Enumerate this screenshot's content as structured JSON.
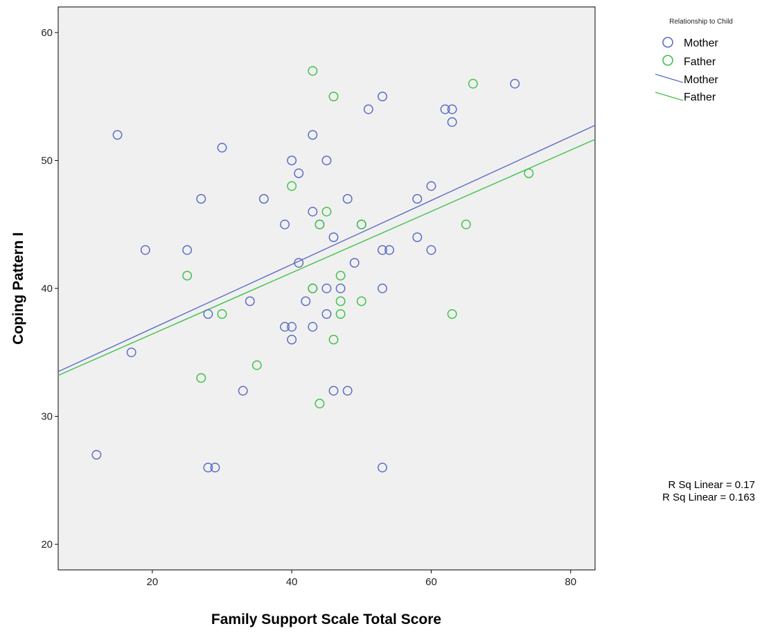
{
  "chart_data": {
    "type": "scatter",
    "xlabel": "Family Support Scale Total Score",
    "ylabel": "Coping Pattern I",
    "xlim": [
      6.5,
      83.5
    ],
    "ylim": [
      18,
      62
    ],
    "x_ticks": [
      20,
      40,
      60,
      80
    ],
    "y_ticks": [
      20,
      30,
      40,
      50,
      60
    ],
    "x_tick_labels": [
      "20",
      "40",
      "60",
      "80"
    ],
    "y_tick_labels": [
      "20",
      "30",
      "40",
      "50",
      "60"
    ],
    "grid": false,
    "legend_position": "top-right outside",
    "legend_title": "Relationship to Child",
    "series": [
      {
        "name": "Mother",
        "color": "#5b6cc4",
        "marker": "open-circle",
        "points": [
          [
            12,
            27
          ],
          [
            15,
            52
          ],
          [
            17,
            35
          ],
          [
            19,
            43
          ],
          [
            25,
            43
          ],
          [
            27,
            47
          ],
          [
            28,
            38
          ],
          [
            28,
            26
          ],
          [
            29,
            26
          ],
          [
            30,
            51
          ],
          [
            33,
            32
          ],
          [
            34,
            39
          ],
          [
            36,
            47
          ],
          [
            39,
            45
          ],
          [
            39,
            37
          ],
          [
            40,
            50
          ],
          [
            40,
            37
          ],
          [
            40,
            36
          ],
          [
            41,
            49
          ],
          [
            41,
            42
          ],
          [
            42,
            39
          ],
          [
            43,
            52
          ],
          [
            43,
            46
          ],
          [
            43,
            40
          ],
          [
            43,
            37
          ],
          [
            44,
            45
          ],
          [
            45,
            50
          ],
          [
            45,
            40
          ],
          [
            45,
            38
          ],
          [
            46,
            44
          ],
          [
            46,
            32
          ],
          [
            47,
            40
          ],
          [
            48,
            47
          ],
          [
            48,
            32
          ],
          [
            49,
            42
          ],
          [
            50,
            45
          ],
          [
            51,
            54
          ],
          [
            53,
            55
          ],
          [
            53,
            43
          ],
          [
            53,
            40
          ],
          [
            53,
            26
          ],
          [
            54,
            43
          ],
          [
            58,
            47
          ],
          [
            58,
            44
          ],
          [
            60,
            48
          ],
          [
            60,
            43
          ],
          [
            62,
            54
          ],
          [
            63,
            54
          ],
          [
            63,
            53
          ],
          [
            72,
            56
          ]
        ]
      },
      {
        "name": "Father",
        "color": "#3fc14a",
        "marker": "open-circle",
        "points": [
          [
            25,
            41
          ],
          [
            27,
            33
          ],
          [
            30,
            38
          ],
          [
            35,
            34
          ],
          [
            40,
            48
          ],
          [
            43,
            57
          ],
          [
            43,
            40
          ],
          [
            44,
            45
          ],
          [
            44,
            31
          ],
          [
            45,
            46
          ],
          [
            46,
            55
          ],
          [
            46,
            36
          ],
          [
            47,
            41
          ],
          [
            47,
            39
          ],
          [
            47,
            38
          ],
          [
            50,
            45
          ],
          [
            50,
            39
          ],
          [
            63,
            38
          ],
          [
            65,
            45
          ],
          [
            66,
            56
          ],
          [
            74,
            49
          ]
        ]
      }
    ],
    "fit_lines": [
      {
        "name": "Mother",
        "color": "#5b6cc4",
        "x": [
          6.5,
          83.5
        ],
        "y": [
          33.5,
          52.75
        ]
      },
      {
        "name": "Father",
        "color": "#3fc14a",
        "x": [
          6.5,
          83.5
        ],
        "y": [
          33.2,
          51.65
        ]
      }
    ],
    "annotations": [
      "R Sq Linear = 0.17",
      "R Sq Linear = 0.163"
    ]
  }
}
